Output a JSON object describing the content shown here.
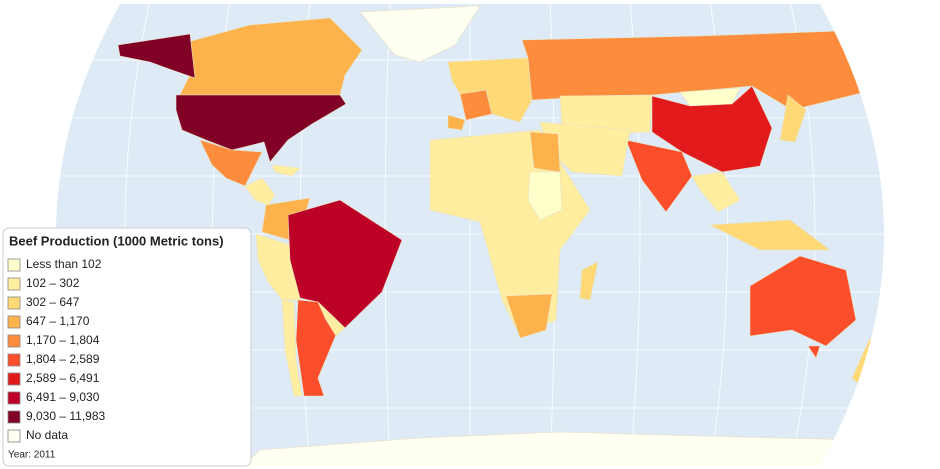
{
  "map": {
    "legend": {
      "title": "Beef Production (1000 Metric tons)",
      "items": [
        {
          "label": "Less than 102",
          "color": "#ffffcc"
        },
        {
          "label": "102 – 302",
          "color": "#ffeda0"
        },
        {
          "label": "302 – 647",
          "color": "#fed976"
        },
        {
          "label": "647 – 1,170",
          "color": "#feb24c"
        },
        {
          "label": "1,170 – 1,804",
          "color": "#fd8d3c"
        },
        {
          "label": "1,804 – 2,589",
          "color": "#fc4e2a"
        },
        {
          "label": "2,589 – 6,491",
          "color": "#e31a1c"
        },
        {
          "label": "6,491 – 9,030",
          "color": "#bd0026"
        },
        {
          "label": "9,030 – 11,983",
          "color": "#800026"
        },
        {
          "label": "No data",
          "color": "#fffff2"
        }
      ]
    },
    "footnote": "Year: 2011"
  }
}
